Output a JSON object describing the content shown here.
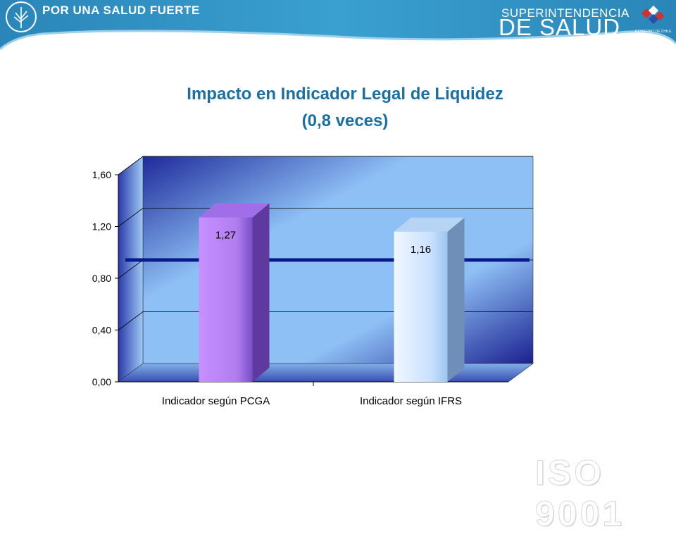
{
  "header": {
    "slogan": "POR UNA SALUD FUERTE",
    "agency_line1": "SUPERINTENDENCIA",
    "agency_line2": "DE SALUD",
    "gov_label": "GOBIERNO DE CHILE",
    "banner_color": "#2e8fbf"
  },
  "watermark": "ISO 9001",
  "chart_data": {
    "type": "bar",
    "title_line1": "Impacto en Indicador Legal de Liquidez",
    "title_line2": "(0,8 veces)",
    "categories": [
      "Indicador según PCGA",
      "Indicador según IFRS"
    ],
    "values": [
      1.27,
      1.16
    ],
    "value_labels": [
      "1,27",
      "1,16"
    ],
    "bar_colors": [
      "#c08cff",
      "#d8ecff"
    ],
    "reference_line": 0.8,
    "ylim": [
      0,
      1.6
    ],
    "yticks": [
      0,
      0.4,
      0.8,
      1.2,
      1.6
    ],
    "ytick_labels": [
      "0,00",
      "0,40",
      "0,80",
      "1,20",
      "1,60"
    ],
    "grid": true,
    "three_d": true,
    "xlabel": "",
    "ylabel": ""
  }
}
